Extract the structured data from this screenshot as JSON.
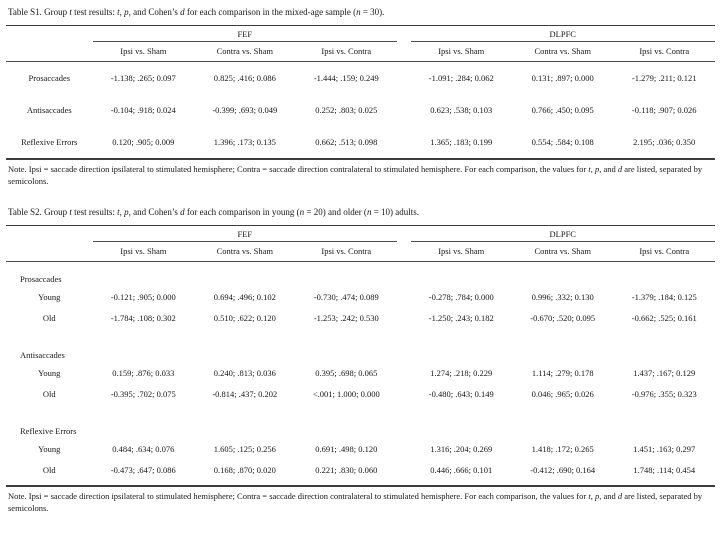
{
  "page": {
    "background": "#ffffff",
    "text_color": "#161616",
    "rule_color": "#3c3c3c"
  },
  "tables": [
    {
      "id": "table-s1",
      "title_segments": [
        {
          "t": "Table S1. Group "
        },
        {
          "t": "t",
          "i": true
        },
        {
          "t": " test results: "
        },
        {
          "t": "t",
          "i": true
        },
        {
          "t": ", "
        },
        {
          "t": "p",
          "i": true
        },
        {
          "t": ", and Cohen’s "
        },
        {
          "t": "d",
          "i": true
        },
        {
          "t": " for each comparison in the mixed-age sample ("
        },
        {
          "t": "n",
          "i": true
        },
        {
          "t": " = 30)."
        }
      ],
      "group_headers": [
        "FEF",
        "DLPFC"
      ],
      "sub_headers": [
        "Ipsi vs. Sham",
        "Contra vs. Sham",
        "Ipsi vs. Contra",
        "Ipsi vs. Sham",
        "Contra vs. Sham",
        "Ipsi vs. Contra"
      ],
      "rows": [
        {
          "type": "data",
          "label": "Prosaccades",
          "values": [
            "-1.138; .265; 0.097",
            "0.825; .416; 0.086",
            "-1.444; .159; 0.249",
            "-1.091; .284; 0.062",
            "0.131; .897; 0.000",
            "-1.279; .211; 0.121"
          ]
        },
        {
          "type": "data",
          "label": "Antisaccades",
          "values": [
            "-0.104; .918; 0.024",
            "-0.399; .693; 0.049",
            "0.252; .803; 0.025",
            "0.623; .538; 0.103",
            "0.766; .450; 0.095",
            "-0.118; .907; 0.026"
          ]
        },
        {
          "type": "data",
          "label": "Reflexive Errors",
          "values": [
            "0.120; .905; 0.009",
            "1.396; .173; 0.135",
            "0.662; .513; 0.098",
            "1.365; .183; 0.199",
            "0.554; .584; 0.108",
            "2.195; .036; 0.350"
          ]
        }
      ],
      "note_segments": [
        {
          "t": "Note. Ipsi = saccade direction ipsilateral to stimulated hemisphere; Contra = saccade direction contralateral to stimulated hemisphere. For each comparison, the values for "
        },
        {
          "t": "t",
          "i": true
        },
        {
          "t": ", "
        },
        {
          "t": "p",
          "i": true
        },
        {
          "t": ", and "
        },
        {
          "t": "d",
          "i": true
        },
        {
          "t": " are listed, separated by semicolons."
        }
      ]
    },
    {
      "id": "table-s2",
      "title_segments": [
        {
          "t": "Table S2. Group "
        },
        {
          "t": "t",
          "i": true
        },
        {
          "t": " test results: "
        },
        {
          "t": "t",
          "i": true
        },
        {
          "t": ", "
        },
        {
          "t": "p",
          "i": true
        },
        {
          "t": ", and Cohen’s "
        },
        {
          "t": "d",
          "i": true
        },
        {
          "t": " for each comparison in young ("
        },
        {
          "t": "n",
          "i": true
        },
        {
          "t": " = 20) and older ("
        },
        {
          "t": "n",
          "i": true
        },
        {
          "t": " = 10) adults."
        }
      ],
      "group_headers": [
        "FEF",
        "DLPFC"
      ],
      "sub_headers": [
        "Ipsi vs. Sham",
        "Contra vs. Sham",
        "Ipsi vs. Contra",
        "Ipsi vs. Sham",
        "Contra vs. Sham",
        "Ipsi vs. Contra"
      ],
      "rows": [
        {
          "type": "group",
          "label": "Prosaccades"
        },
        {
          "type": "data",
          "label": "Young",
          "values": [
            "-0.121; .905; 0.000",
            "0.694; .496; 0.102",
            "-0.730; .474; 0.089",
            "-0.278; .784; 0.000",
            "0.996; .332; 0.130",
            "-1.379; .184; 0.125"
          ]
        },
        {
          "type": "data",
          "label": "Old",
          "values": [
            "-1.784; .108; 0.302",
            "0.510; .622; 0.120",
            "-1.253; .242; 0.530",
            "-1.250; .243; 0.182",
            "-0.670; .520; 0.095",
            "-0.662; .525; 0.161"
          ]
        },
        {
          "type": "group",
          "label": "Antisaccades"
        },
        {
          "type": "data",
          "label": "Young",
          "values": [
            "0.159; .876; 0.033",
            "0.240; .813; 0.036",
            "0.395; .698; 0.065",
            "1.274; .218; 0.229",
            "1.114; .279; 0.178",
            "1.437; .167; 0.129"
          ]
        },
        {
          "type": "data",
          "label": "Old",
          "values": [
            "-0.395; .702; 0.075",
            "-0.814; .437; 0.202",
            "<.001; 1.000; 0.000",
            "-0.480; .643; 0.149",
            "0.046; .965; 0.026",
            "-0.976; .355; 0.323"
          ]
        },
        {
          "type": "group",
          "label": "Reflexive Errors"
        },
        {
          "type": "data",
          "label": "Young",
          "values": [
            "0.484; .634; 0.076",
            "1.605; .125; 0.256",
            "0.691; .498; 0.120",
            "1.316; .204; 0.269",
            "1.418; .172; 0.265",
            "1.451; .163; 0.297"
          ]
        },
        {
          "type": "data",
          "label": "Old",
          "values": [
            "-0.473; .647; 0.086",
            "0.168; .870; 0.020",
            "0.221; .830; 0.060",
            "0.446; .666; 0.101",
            "-0.412; .690; 0.164",
            "1.748; .114; 0.454"
          ]
        }
      ],
      "note_segments": [
        {
          "t": "Note. Ipsi = saccade direction ipsilateral to stimulated hemisphere; Contra = saccade direction contralateral to stimulated hemisphere. For each comparison, the values for "
        },
        {
          "t": "t",
          "i": true
        },
        {
          "t": ", "
        },
        {
          "t": "p",
          "i": true
        },
        {
          "t": ", and "
        },
        {
          "t": "d",
          "i": true
        },
        {
          "t": " are listed, separated by semicolons."
        }
      ]
    }
  ]
}
